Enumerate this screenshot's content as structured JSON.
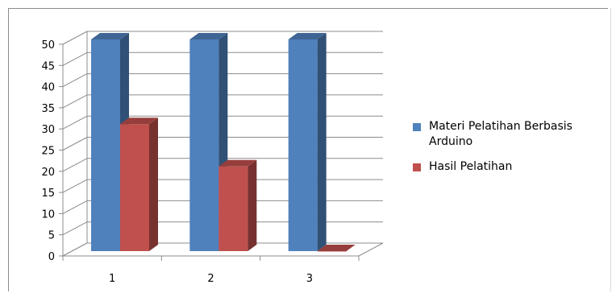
{
  "chart_data": {
    "type": "bar",
    "categories": [
      "1",
      "2",
      "3"
    ],
    "series": [
      {
        "name": "Materi Pelatihan Berbasis Arduino",
        "values": [
          50,
          50,
          50
        ],
        "color": "#4f81bd"
      },
      {
        "name": "Hasil Pelatihan",
        "values": [
          30,
          20,
          0
        ],
        "color": "#c0504d"
      }
    ],
    "title": "",
    "xlabel": "",
    "ylabel": "",
    "ylim": [
      0,
      50
    ],
    "yticks": [
      0,
      5,
      10,
      15,
      20,
      25,
      30,
      35,
      40,
      45,
      50
    ],
    "grid": true,
    "legend_position": "right",
    "style": "3d-column"
  }
}
